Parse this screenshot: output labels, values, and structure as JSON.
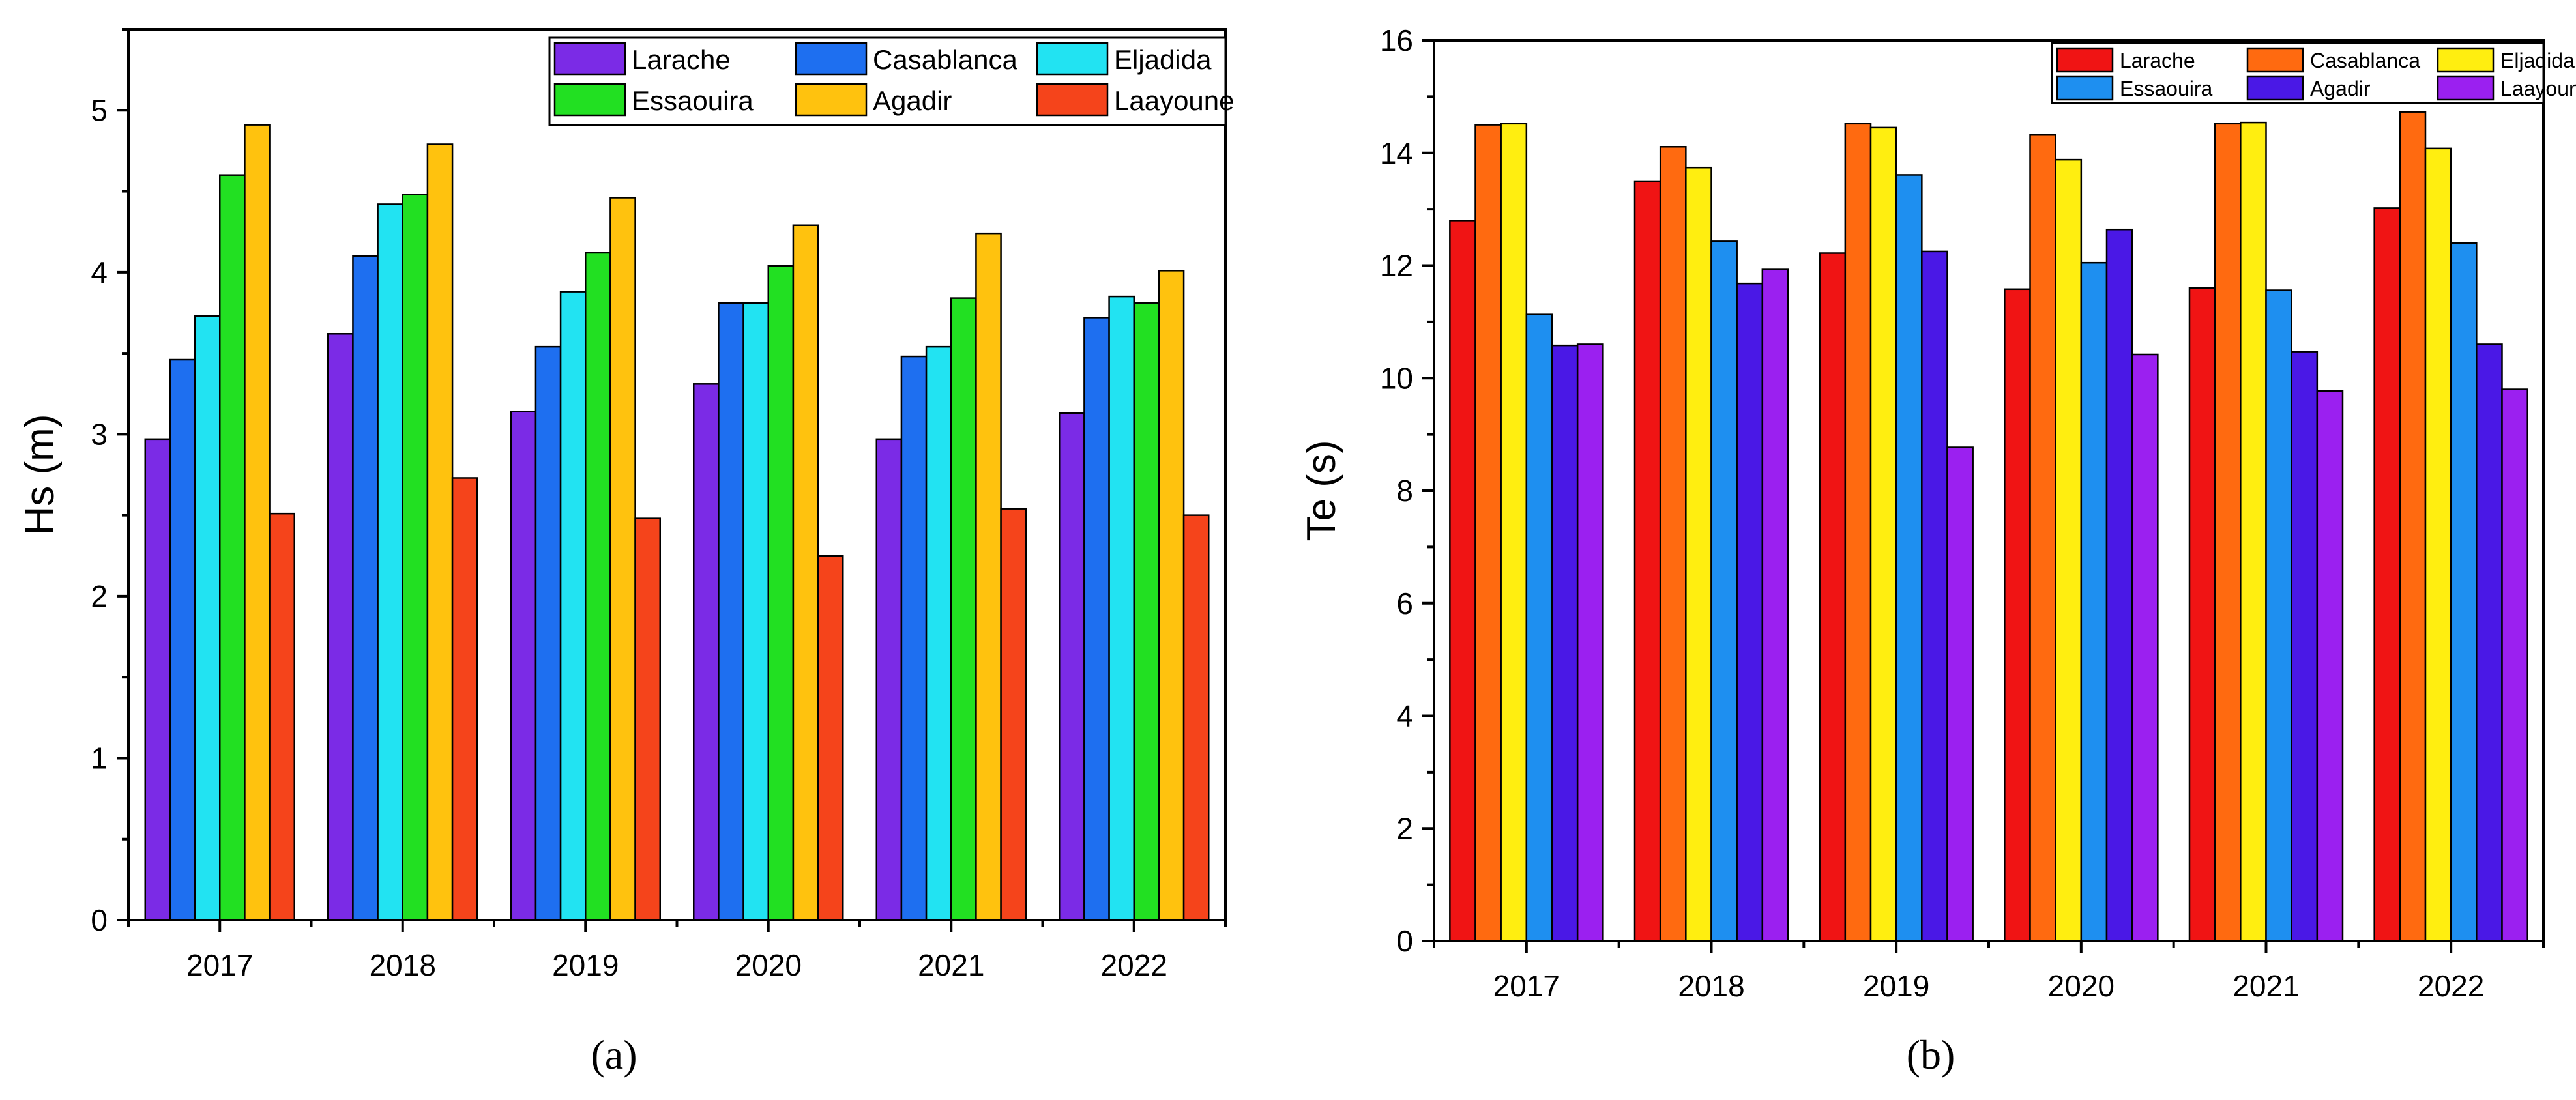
{
  "chart_data": [
    {
      "type": "bar",
      "panel_label": "(a)",
      "categories": [
        "2017",
        "2018",
        "2019",
        "2020",
        "2021",
        "2022"
      ],
      "ylabel": "Hs (m)",
      "xlabel": "",
      "ylim": [
        0,
        5.5
      ],
      "yticks": [
        "0",
        "1",
        "2",
        "3",
        "4",
        "5"
      ],
      "legend_position": "top-right",
      "series": [
        {
          "name": "Larache",
          "color": "#7b2be6",
          "values": [
            2.97,
            3.62,
            3.14,
            3.31,
            2.97,
            3.13
          ]
        },
        {
          "name": "Casablanca",
          "color": "#1e6ff0",
          "values": [
            3.46,
            4.1,
            3.54,
            3.81,
            3.48,
            3.72
          ]
        },
        {
          "name": "Eljadida",
          "color": "#22e3f2",
          "values": [
            3.73,
            4.42,
            3.88,
            3.81,
            3.54,
            3.85
          ]
        },
        {
          "name": "Essaouira",
          "color": "#22e022",
          "values": [
            4.6,
            4.48,
            4.12,
            4.04,
            3.84,
            3.81
          ]
        },
        {
          "name": "Agadir",
          "color": "#ffc20e",
          "values": [
            4.91,
            4.79,
            4.46,
            4.29,
            4.24,
            4.01
          ]
        },
        {
          "name": "Laayoune",
          "color": "#f5441b",
          "values": [
            2.51,
            2.73,
            2.48,
            2.25,
            2.54,
            2.5
          ]
        }
      ]
    },
    {
      "type": "bar",
      "panel_label": "(b)",
      "categories": [
        "2017",
        "2018",
        "2019",
        "2020",
        "2021",
        "2022"
      ],
      "ylabel": "Te (s)",
      "xlabel": "",
      "ylim": [
        0,
        16
      ],
      "yticks": [
        "0",
        "2",
        "4",
        "6",
        "8",
        "10",
        "12",
        "14",
        "16"
      ],
      "legend_position": "top-right",
      "series": [
        {
          "name": "Larache",
          "color": "#f01414",
          "values": [
            12.8,
            13.5,
            12.22,
            11.58,
            11.6,
            13.02
          ]
        },
        {
          "name": "Casablanca",
          "color": "#ff6a10",
          "values": [
            14.5,
            14.11,
            14.52,
            14.33,
            14.52,
            14.73
          ]
        },
        {
          "name": "Eljadida",
          "color": "#ffee10",
          "values": [
            14.52,
            13.74,
            14.45,
            13.88,
            14.54,
            14.08
          ]
        },
        {
          "name": "Essaouira",
          "color": "#1e8ff0",
          "values": [
            11.13,
            12.43,
            13.61,
            12.05,
            11.56,
            12.4
          ]
        },
        {
          "name": "Agadir",
          "color": "#4a18e6",
          "values": [
            10.58,
            11.68,
            12.25,
            12.64,
            10.47,
            10.6
          ]
        },
        {
          "name": "Laayoune",
          "color": "#9b20f0",
          "values": [
            10.6,
            11.93,
            8.77,
            10.42,
            9.77,
            9.8
          ]
        }
      ]
    }
  ]
}
